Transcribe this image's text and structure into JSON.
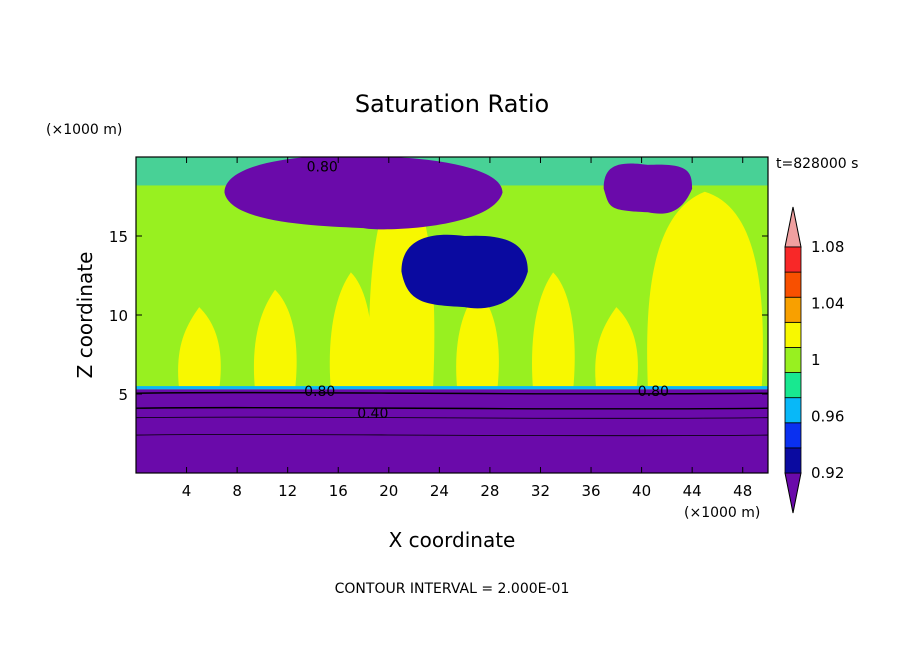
{
  "chart_data": {
    "type": "heatmap",
    "title": "Saturation Ratio",
    "xlabel": "X coordinate",
    "ylabel": "Z coordinate",
    "x_unit": "(×1000 m)",
    "y_unit": "(×1000 m)",
    "time_label": "t=828000 s",
    "footer": "CONTOUR INTERVAL = 2.000E-01",
    "xlim": [
      0,
      50
    ],
    "ylim": [
      0,
      20
    ],
    "x_ticks": [
      4,
      8,
      12,
      16,
      20,
      24,
      28,
      32,
      36,
      40,
      44,
      48
    ],
    "y_ticks": [
      5,
      10,
      15
    ],
    "colorbar": {
      "levels": [
        0.9,
        0.92,
        0.94,
        0.96,
        0.98,
        1.0,
        1.02,
        1.04,
        1.06,
        1.08,
        1.1
      ],
      "tick_labels": [
        "0.92",
        "0.96",
        "1",
        "1.04",
        "1.08"
      ],
      "tick_values": [
        0.92,
        0.96,
        1.0,
        1.04,
        1.08
      ],
      "colors": [
        "#6a0aaa",
        "#0a0aa0",
        "#0a30f0",
        "#08b8f8",
        "#18e890",
        "#98f020",
        "#f8f800",
        "#f8a000",
        "#f85000",
        "#f82828",
        "#f0a0a0"
      ]
    },
    "contour_labels": [
      "0.80",
      "0.80",
      "0.80",
      "0.40"
    ],
    "regions": [
      {
        "name": "lower-dry-layer",
        "x": [
          0,
          50
        ],
        "z": [
          0,
          5.3
        ],
        "value": 0.4
      },
      {
        "name": "mid-troposphere",
        "x": [
          0,
          50
        ],
        "z": [
          5.3,
          17.5
        ],
        "value": 0.99
      },
      {
        "name": "moist-columns",
        "x_centers": [
          5,
          11,
          17,
          21,
          27,
          33,
          38,
          45
        ],
        "value": 1.01
      },
      {
        "name": "upper-dry-cell",
        "x": [
          7,
          29
        ],
        "z": [
          15.5,
          20
        ],
        "value": 0.7
      },
      {
        "name": "upper-right-dry",
        "x": [
          37,
          44
        ],
        "z": [
          16.5,
          19.5
        ],
        "value": 0.8
      },
      {
        "name": "mid-dry-pocket",
        "x": [
          21,
          31
        ],
        "z": [
          10.5,
          15
        ],
        "value": 0.9
      }
    ]
  }
}
